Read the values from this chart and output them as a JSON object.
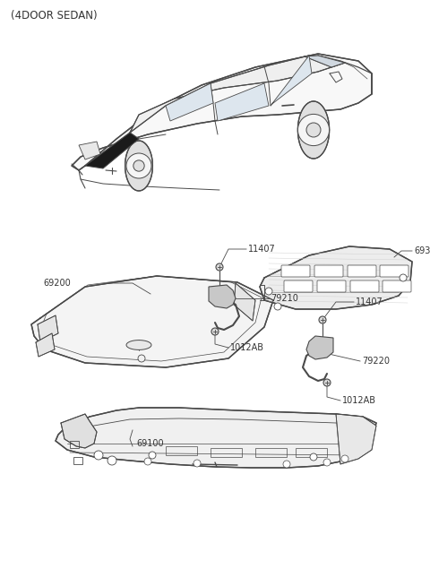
{
  "title": "(4DOOR SEDAN)",
  "bg_color": "#ffffff",
  "lc": "#4a4a4a",
  "lc2": "#333333",
  "label_fs": 7.0,
  "title_fs": 8.5,
  "figsize": [
    4.8,
    6.35
  ],
  "dpi": 100
}
